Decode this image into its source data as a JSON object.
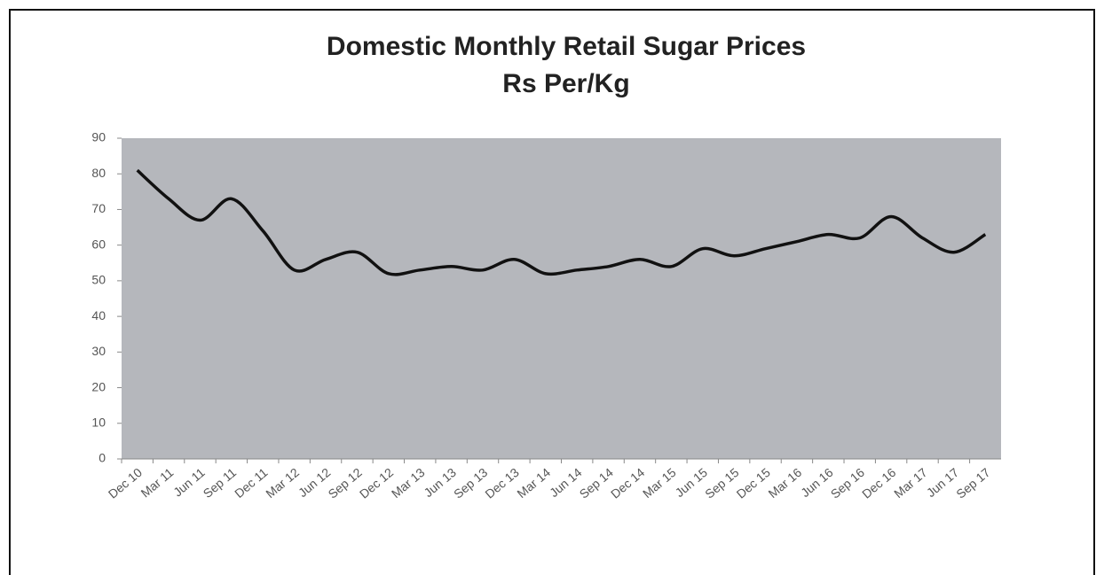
{
  "chart_data": {
    "type": "line",
    "title": "Domestic Monthly Retail Sugar Prices",
    "subtitle": "Rs Per/Kg",
    "categories": [
      "Dec 10",
      "Mar 11",
      "Jun 11",
      "Sep 11",
      "Dec 11",
      "Mar 12",
      "Jun 12",
      "Sep 12",
      "Dec 12",
      "Mar 13",
      "Jun 13",
      "Sep 13",
      "Dec 13",
      "Mar 14",
      "Jun 14",
      "Sep 14",
      "Dec 14",
      "Mar 15",
      "Jun 15",
      "Sep 15",
      "Dec 15",
      "Mar 16",
      "Jun 16",
      "Sep 16",
      "Dec 16",
      "Mar 17",
      "Jun 17",
      "Sep 17"
    ],
    "values": [
      81,
      73,
      67,
      73,
      64,
      53,
      56,
      58,
      52,
      53,
      54,
      53,
      56,
      52,
      53,
      54,
      56,
      54,
      59,
      57,
      59,
      61,
      63,
      62,
      68,
      62,
      58,
      63
    ],
    "color": "#111111",
    "ylim": [
      0,
      90
    ],
    "yticks": [
      0,
      10,
      20,
      30,
      40,
      50,
      60,
      70,
      80,
      90
    ],
    "grid": false
  }
}
